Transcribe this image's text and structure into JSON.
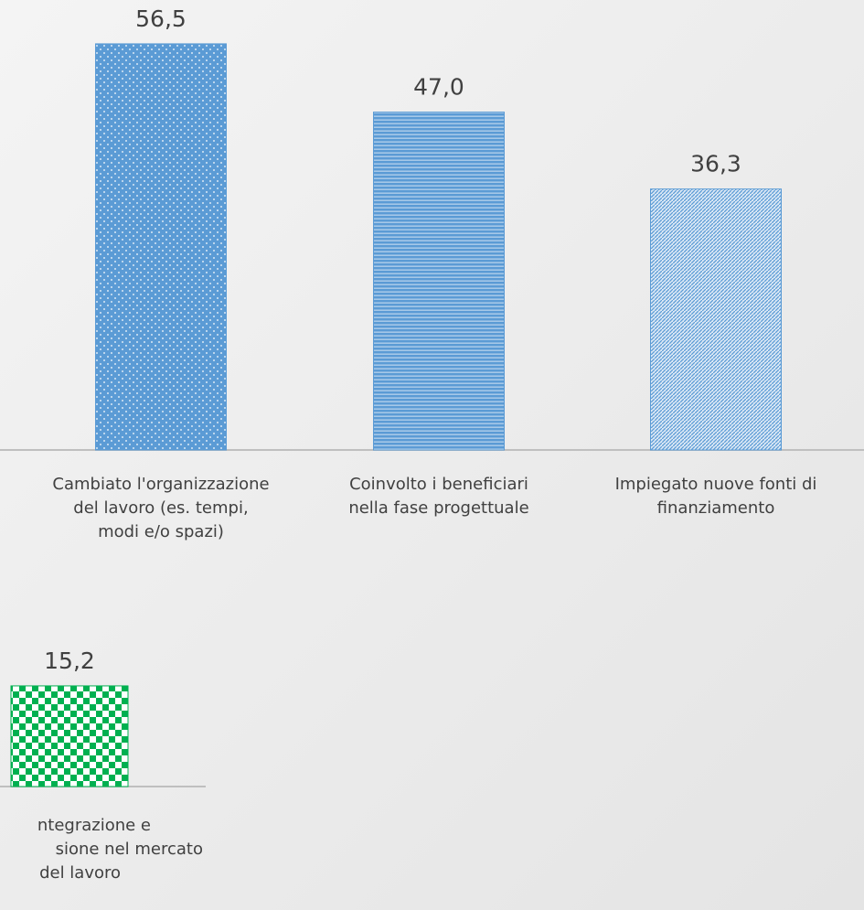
{
  "chart_data": [
    {
      "type": "bar",
      "categories": [
        [
          "Cambiato l'organizzazione",
          "del lavoro (es. tempi,",
          "modi e/o spazi)"
        ],
        [
          "Coinvolto i beneficiari",
          "nella fase progettuale"
        ],
        [
          "Impiegato nuove fonti di",
          "finanziamento"
        ]
      ],
      "values": [
        56.5,
        47.0,
        36.3
      ],
      "value_labels": [
        "56,5",
        "47,0",
        "36,3"
      ],
      "colors": [
        "#5b9bd5",
        "#5b9bd5",
        "#5b9bd5"
      ]
    },
    {
      "type": "bar",
      "categories": [
        [
          "ntegrazione e",
          "sione nel mercato",
          "del lavoro"
        ]
      ],
      "values": [
        15.2
      ],
      "value_labels": [
        "15,2"
      ],
      "colors": [
        "#00b050"
      ]
    }
  ]
}
